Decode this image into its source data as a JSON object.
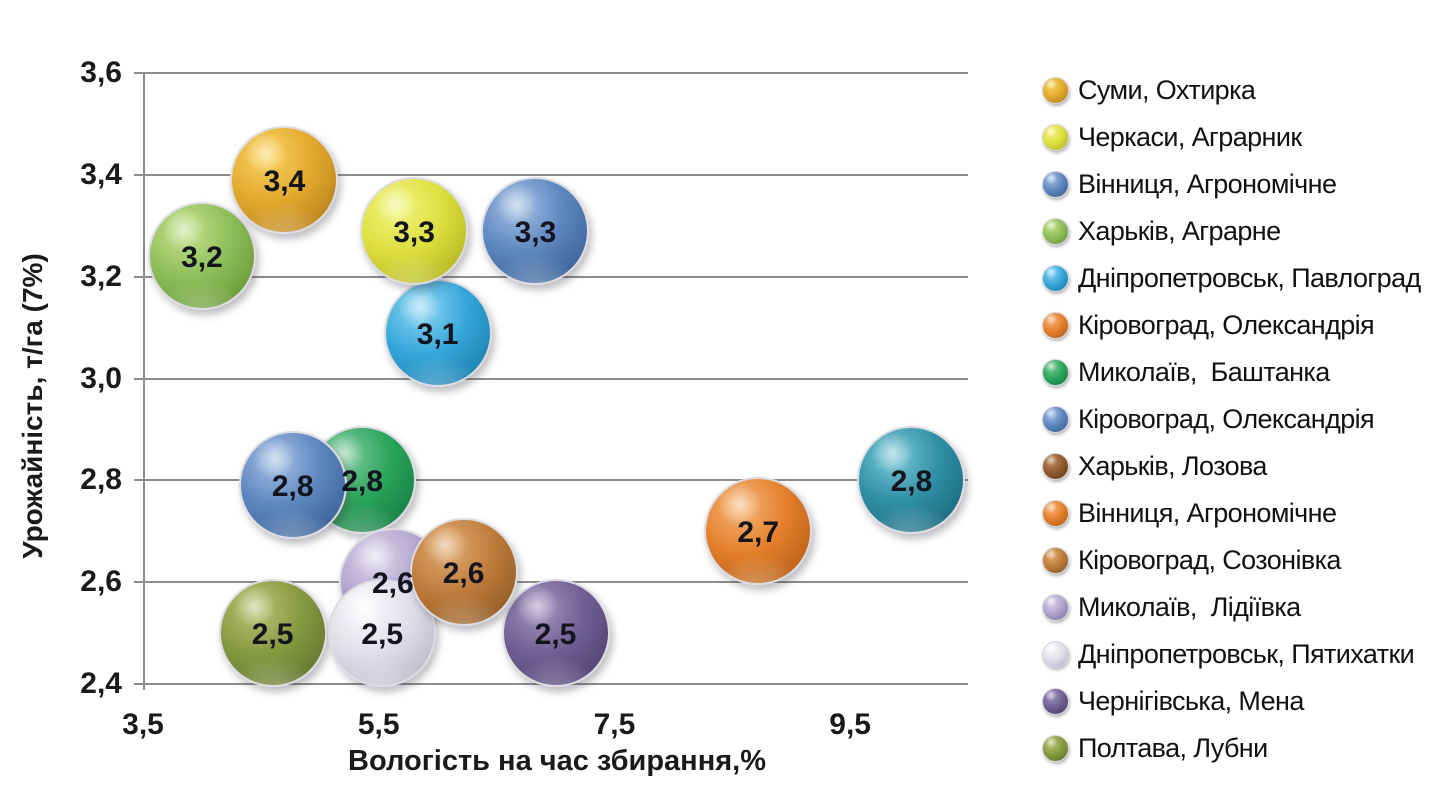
{
  "chart_data": {
    "type": "bubble",
    "title": "",
    "xlabel": "Вологість на час збирання,%",
    "ylabel": "Урожайність, т/га (7%)",
    "xlim": [
      3.5,
      10.5
    ],
    "ylim": [
      2.4,
      3.6
    ],
    "grid": "horizontal",
    "legend_position": "right",
    "decimal_style": "comma",
    "x_ticks": [
      {
        "value": 3.5,
        "label": "3,5"
      },
      {
        "value": 5.5,
        "label": "5,5"
      },
      {
        "value": 7.5,
        "label": "7,5"
      },
      {
        "value": 9.5,
        "label": "9,5"
      }
    ],
    "y_ticks": [
      {
        "value": 3.6,
        "label": "3,6"
      },
      {
        "value": 3.4,
        "label": "3,4"
      },
      {
        "value": 3.2,
        "label": "3,2"
      },
      {
        "value": 3.0,
        "label": "3,0"
      },
      {
        "value": 2.8,
        "label": "2,8"
      },
      {
        "value": 2.6,
        "label": "2,6"
      },
      {
        "value": 2.4,
        "label": "2,4"
      }
    ],
    "points": [
      {
        "name": "Харьків, Аграрне",
        "x": 4.0,
        "y": 3.24,
        "label": "3,2",
        "size": 104,
        "colors": {
          "hi": "#C4E18E",
          "mid": "#8FBE58",
          "lo": "#5B8A2D"
        }
      },
      {
        "name": "Суми, Охтирка",
        "x": 4.7,
        "y": 3.39,
        "label": "3,4",
        "size": 104,
        "colors": {
          "hi": "#F8D35E",
          "mid": "#E3A92E",
          "lo": "#A97414"
        }
      },
      {
        "name": "Дніпропетровськ, Павлоград",
        "x": 6.0,
        "y": 3.09,
        "label": "3,1",
        "size": 104,
        "colors": {
          "hi": "#8FD6F2",
          "mid": "#35A6DA",
          "lo": "#13749E"
        }
      },
      {
        "name": "Черкаси, Аграрник",
        "x": 5.8,
        "y": 3.29,
        "label": "3,3",
        "size": 104,
        "colors": {
          "hi": "#F2F47F",
          "mid": "#DDDF3E",
          "lo": "#A3A614"
        }
      },
      {
        "name": "Вінниця, Агрономічне",
        "x": 6.83,
        "y": 3.29,
        "label": "3,3",
        "size": 104,
        "colors": {
          "hi": "#A4C0E4",
          "mid": "#5C86BE",
          "lo": "#2F5588"
        }
      },
      {
        "name": "Миколаїв,  Баштанка",
        "x": 5.36,
        "y": 2.8,
        "label": "2,8",
        "size": 104,
        "colors": {
          "hi": "#7FCB9C",
          "mid": "#2AA45C",
          "lo": "#117038"
        }
      },
      {
        "name": "Кіровоград, Олександрія",
        "x": 4.77,
        "y": 2.79,
        "label": "2,8",
        "size": 104,
        "colors": {
          "hi": "#A4C0E4",
          "mid": "#5C86BE",
          "lo": "#2F5588"
        }
      },
      {
        "name": "Кіровоград, Олександрія",
        "x": 10.02,
        "y": 2.8,
        "label": "2,8",
        "size": 104,
        "colors": {
          "hi": "#7CC8D8",
          "mid": "#2F8FA5",
          "lo": "#155C6E"
        }
      },
      {
        "name": "Вінниця, Агрономічне",
        "x": 8.72,
        "y": 2.7,
        "label": "2,7",
        "size": 104,
        "colors": {
          "hi": "#F6B579",
          "mid": "#E47F2B",
          "lo": "#A8540F"
        }
      },
      {
        "name": "Полтава, Лубни",
        "x": 4.6,
        "y": 2.5,
        "label": "2,5",
        "size": 104,
        "colors": {
          "hi": "#B8C476",
          "mid": "#87993F",
          "lo": "#57662A"
        }
      },
      {
        "name": "Чернігівська, Мена",
        "x": 7.0,
        "y": 2.5,
        "label": "2,5",
        "size": 104,
        "colors": {
          "hi": "#A295C0",
          "mid": "#6F5F93",
          "lo": "#453866"
        }
      },
      {
        "name": "Миколаїв,  Лідіївка",
        "x": 5.62,
        "y": 2.6,
        "label": "2,6",
        "size": 104,
        "colors": {
          "hi": "#DCD5EC",
          "mid": "#AFA3CC",
          "lo": "#776A9E"
        }
      },
      {
        "name": "Дніпропетровськ, Пятихатки",
        "x": 5.53,
        "y": 2.5,
        "label": "2,5",
        "size": 104,
        "colors": {
          "hi": "#FBFBFD",
          "mid": "#DEDEE7",
          "lo": "#ADADBB"
        }
      },
      {
        "name": "Кіровоград, Созонівка",
        "x": 6.22,
        "y": 2.62,
        "label": "2,6",
        "size": 104,
        "colors": {
          "hi": "#E3AC73",
          "mid": "#BE7C3B",
          "lo": "#7F4E1B"
        }
      }
    ],
    "legend": [
      {
        "label": "Суми, Охтирка",
        "colors": {
          "hi": "#F8D35E",
          "mid": "#E3A92E",
          "lo": "#A97414"
        }
      },
      {
        "label": "Черкаси, Аграрник",
        "colors": {
          "hi": "#F2F47F",
          "mid": "#DDDF3E",
          "lo": "#A3A614"
        }
      },
      {
        "label": "Вінниця, Агрономічне",
        "colors": {
          "hi": "#A4C0E4",
          "mid": "#5C86BE",
          "lo": "#2F5588"
        }
      },
      {
        "label": "Харьків, Аграрне",
        "colors": {
          "hi": "#C4E18E",
          "mid": "#8FBE58",
          "lo": "#5B8A2D"
        }
      },
      {
        "label": "Дніпропетровськ, Павлоград",
        "colors": {
          "hi": "#8FD6F2",
          "mid": "#35A6DA",
          "lo": "#13749E"
        }
      },
      {
        "label": "Кіровоград, Олександрія",
        "colors": {
          "hi": "#F6B579",
          "mid": "#E47F2B",
          "lo": "#A8540F"
        }
      },
      {
        "label": "Миколаїв,  Баштанка",
        "colors": {
          "hi": "#7FCB9C",
          "mid": "#2AA45C",
          "lo": "#117038"
        }
      },
      {
        "label": "Кіровоград, Олександрія",
        "colors": {
          "hi": "#A4C0E4",
          "mid": "#5C86BE",
          "lo": "#2F5588"
        }
      },
      {
        "label": "Харьків, Лозова",
        "colors": {
          "hi": "#C08B5C",
          "mid": "#8F5B2F",
          "lo": "#5C3716"
        }
      },
      {
        "label": "Вінниця, Агрономічне",
        "colors": {
          "hi": "#F6B579",
          "mid": "#E47F2B",
          "lo": "#A8540F"
        }
      },
      {
        "label": "Кіровоград, Созонівка",
        "colors": {
          "hi": "#E3AC73",
          "mid": "#BE7C3B",
          "lo": "#7F4E1B"
        }
      },
      {
        "label": "Миколаїв,  Лідіївка",
        "colors": {
          "hi": "#DCD5EC",
          "mid": "#AFA3CC",
          "lo": "#776A9E"
        }
      },
      {
        "label": "Дніпропетровськ, Пятихатки",
        "colors": {
          "hi": "#FBFBFD",
          "mid": "#DEDEE7",
          "lo": "#ADADBB"
        }
      },
      {
        "label": "Чернігівська, Мена",
        "colors": {
          "hi": "#A295C0",
          "mid": "#6F5F93",
          "lo": "#453866"
        }
      },
      {
        "label": "Полтава, Лубни",
        "colors": {
          "hi": "#B8C476",
          "mid": "#87993F",
          "lo": "#57662A"
        }
      }
    ],
    "style_colors": {
      "gridline": "#8C8C8C",
      "axis": "#8A8A8A",
      "tick_text": "#1A1A1A",
      "bubble_label_text": "#14141E",
      "background": "#FFFFFF"
    }
  }
}
